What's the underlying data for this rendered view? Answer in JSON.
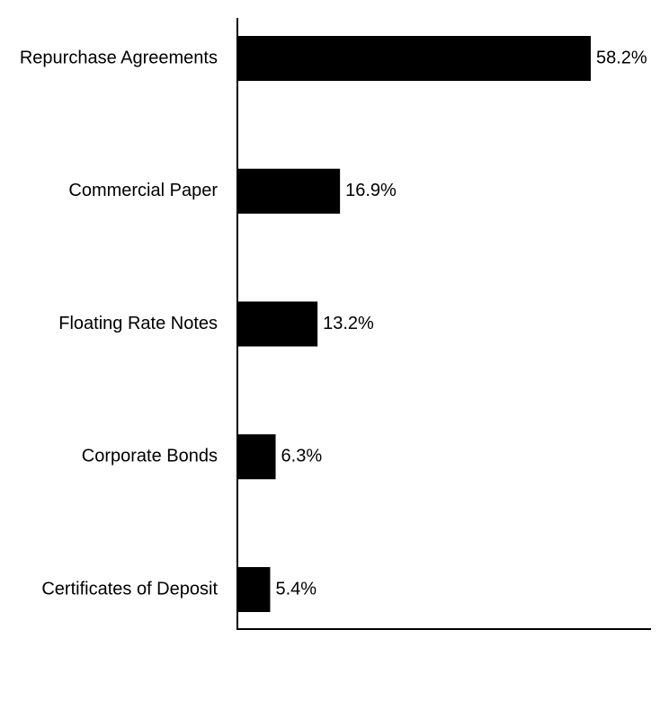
{
  "chart_data": {
    "type": "bar",
    "orientation": "horizontal",
    "categories": [
      "Repurchase Agreements",
      "Commercial Paper",
      "Floating Rate Notes",
      "Corporate Bonds",
      "Certificates of Deposit"
    ],
    "values": [
      58.2,
      16.9,
      13.2,
      6.3,
      5.4
    ],
    "value_labels": [
      "58.2%",
      "16.9%",
      "13.2%",
      "6.3%",
      "5.4%"
    ],
    "xlim": [
      0,
      68
    ],
    "grid": false,
    "legend": "none",
    "bar_color": "#000000"
  }
}
